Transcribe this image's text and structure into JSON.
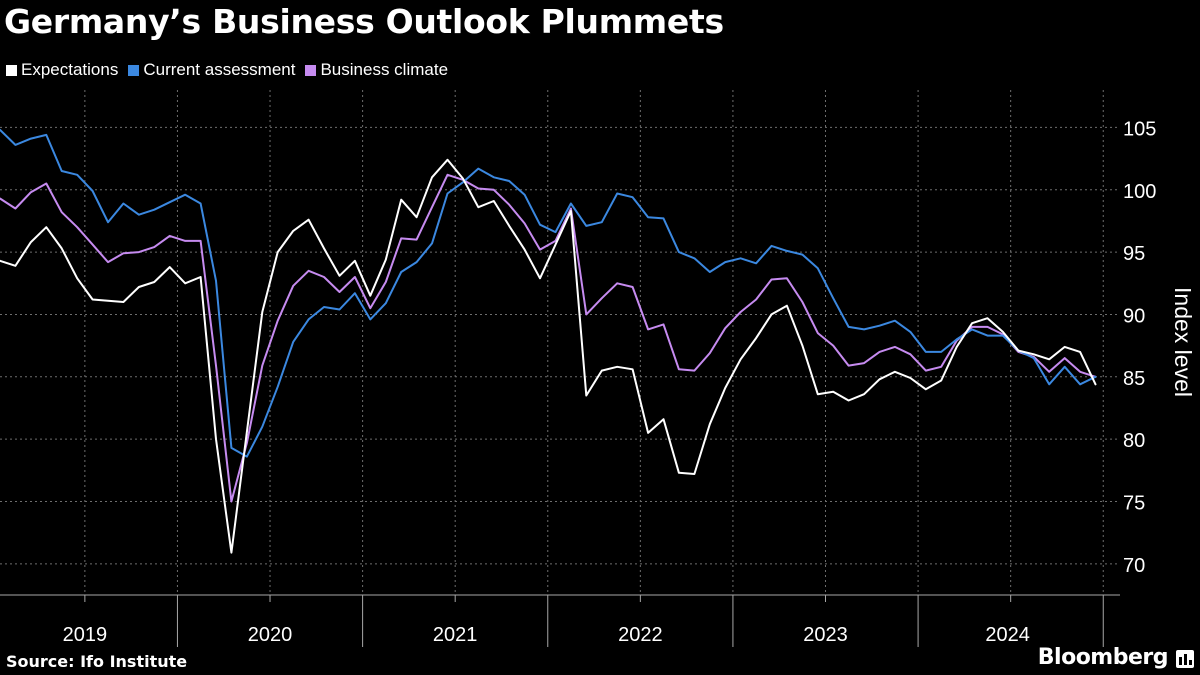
{
  "header": {
    "title": "Germany’s Business Outlook Plummets"
  },
  "footer": {
    "source": "Source: Ifo Institute",
    "brand": "Bloomberg"
  },
  "chart_data": {
    "type": "line",
    "title": "Germany’s Business Outlook Plummets",
    "ylabel": "Index level",
    "xlabel": "",
    "ylim": [
      67.5,
      108
    ],
    "yticks": [
      70,
      75,
      80,
      85,
      90,
      95,
      100,
      105
    ],
    "x_period": {
      "start": "2019-01",
      "end": "2024-10",
      "frequency": "monthly"
    },
    "year_labels": [
      "2019",
      "2020",
      "2021",
      "2022",
      "2023",
      "2024"
    ],
    "grid": true,
    "legend_position": "top-left",
    "series": [
      {
        "name": "Expectations",
        "color": "#ffffff",
        "values": [
          94.3,
          93.9,
          95.8,
          97.0,
          95.3,
          92.9,
          91.2,
          91.1,
          91.0,
          92.2,
          92.6,
          93.8,
          92.5,
          93.0,
          80.0,
          70.9,
          80.6,
          90.2,
          95.0,
          96.7,
          97.6,
          95.3,
          93.1,
          94.3,
          91.5,
          94.4,
          99.2,
          97.8,
          101.0,
          102.4,
          100.9,
          98.6,
          99.1,
          97.1,
          95.2,
          92.9,
          95.6,
          98.3,
          83.5,
          85.5,
          85.8,
          85.6,
          80.5,
          81.6,
          77.3,
          77.2,
          81.2,
          84.1,
          86.4,
          88.1,
          90.0,
          90.7,
          87.5,
          83.6,
          83.8,
          83.1,
          83.6,
          84.8,
          85.4,
          84.9,
          84.0,
          84.7,
          87.4,
          89.3,
          89.7,
          88.6,
          87.1,
          86.8,
          86.4,
          87.4,
          87.0,
          84.4
        ]
      },
      {
        "name": "Current assessment",
        "color": "#3b88e0",
        "values": [
          104.8,
          103.6,
          104.1,
          104.4,
          101.5,
          101.2,
          99.9,
          97.4,
          98.9,
          98.0,
          98.4,
          99.0,
          99.6,
          98.9,
          92.7,
          79.3,
          78.6,
          81.0,
          84.2,
          87.8,
          89.6,
          90.6,
          90.4,
          91.7,
          89.6,
          90.9,
          93.4,
          94.2,
          95.7,
          99.7,
          100.6,
          101.7,
          101.0,
          100.7,
          99.6,
          97.2,
          96.6,
          98.9,
          97.1,
          97.4,
          99.7,
          99.4,
          97.8,
          97.7,
          95.0,
          94.5,
          93.4,
          94.2,
          94.5,
          94.1,
          95.5,
          95.1,
          94.8,
          93.7,
          91.3,
          89.0,
          88.8,
          89.1,
          89.5,
          88.6,
          87.0,
          87.0,
          88.0,
          88.8,
          88.3,
          88.3,
          87.1,
          86.5,
          84.4,
          85.8,
          84.4,
          85.0
        ]
      },
      {
        "name": "Business climate",
        "color": "#c68bf0",
        "values": [
          99.3,
          98.5,
          99.8,
          100.5,
          98.2,
          97.0,
          95.6,
          94.2,
          94.9,
          95.0,
          95.4,
          96.3,
          95.9,
          95.9,
          85.9,
          75.0,
          79.7,
          85.9,
          89.5,
          92.3,
          93.5,
          93.0,
          91.8,
          93.0,
          90.5,
          92.6,
          96.1,
          96.0,
          98.6,
          101.2,
          100.8,
          100.1,
          100.0,
          98.8,
          97.3,
          95.2,
          95.9,
          98.5,
          90.0,
          91.3,
          92.5,
          92.2,
          88.8,
          89.2,
          85.6,
          85.5,
          86.9,
          88.9,
          90.2,
          91.2,
          92.8,
          92.9,
          91.0,
          88.5,
          87.5,
          85.9,
          86.1,
          87.0,
          87.4,
          86.8,
          85.5,
          85.8,
          87.9,
          89.0,
          89.0,
          88.4,
          87.0,
          86.6,
          85.4,
          86.5,
          85.4,
          85.0
        ]
      }
    ]
  }
}
